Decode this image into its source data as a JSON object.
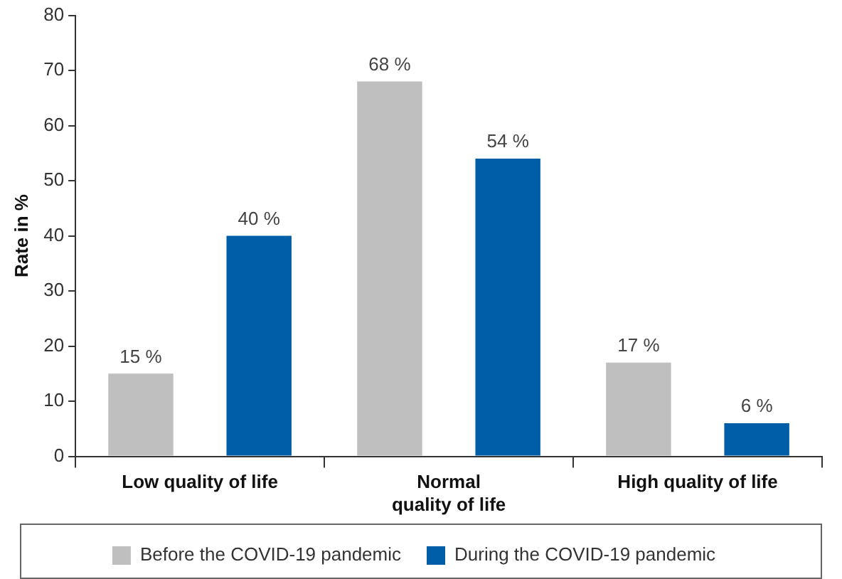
{
  "chart_data": {
    "type": "bar",
    "ylabel": "Rate in %",
    "categories": [
      "Low quality of life",
      "Normal\nquality of life",
      "High quality of life"
    ],
    "series": [
      {
        "name": "Before the COVID-19 pandemic",
        "color": "#bfbfbf",
        "values": [
          15,
          68,
          17
        ],
        "value_labels": [
          "15 %",
          "68 %",
          "17 %"
        ]
      },
      {
        "name": "During the COVID-19 pandemic",
        "color": "#005ea8",
        "values": [
          40,
          54,
          6
        ],
        "value_labels": [
          "40 %",
          "54 %",
          "6 %"
        ]
      }
    ],
    "ylim": [
      0,
      80
    ],
    "yticks": [
      0,
      10,
      20,
      30,
      40,
      50,
      60,
      70,
      80
    ],
    "grid": false,
    "legend": "bottom"
  }
}
